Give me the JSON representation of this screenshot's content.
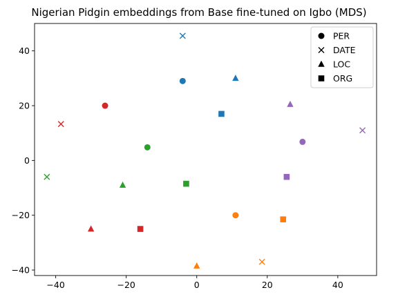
{
  "chart_data": {
    "type": "scatter",
    "title": "Nigerian Pidgin embeddings from Base fine-tuned on Igbo (MDS)",
    "xlabel": "",
    "ylabel": "",
    "xlim": [
      -46,
      51
    ],
    "ylim": [
      -42,
      50
    ],
    "xticks": [
      -40,
      -20,
      0,
      20,
      40
    ],
    "yticks": [
      -40,
      -20,
      0,
      20,
      40
    ],
    "grid": false,
    "legend_position": "top-right",
    "legend": [
      {
        "label": "PER",
        "marker": "circle"
      },
      {
        "label": "DATE",
        "marker": "x"
      },
      {
        "label": "LOC",
        "marker": "triangle"
      },
      {
        "label": "ORG",
        "marker": "square"
      }
    ],
    "colors": {
      "blue": "#1f77b4",
      "orange": "#ff7f0e",
      "green": "#2ca02c",
      "red": "#d62728",
      "purple": "#9467bd"
    },
    "points": [
      {
        "x": -4,
        "y": 45.5,
        "marker": "x",
        "color": "blue"
      },
      {
        "x": -4,
        "y": 29,
        "marker": "circle",
        "color": "blue"
      },
      {
        "x": 11,
        "y": 30,
        "marker": "triangle",
        "color": "blue"
      },
      {
        "x": 7,
        "y": 17,
        "marker": "square",
        "color": "blue"
      },
      {
        "x": -26,
        "y": 20,
        "marker": "circle",
        "color": "red"
      },
      {
        "x": -38.5,
        "y": 13.3,
        "marker": "x",
        "color": "red"
      },
      {
        "x": -30,
        "y": -25,
        "marker": "triangle",
        "color": "red"
      },
      {
        "x": -16,
        "y": -25,
        "marker": "square",
        "color": "red"
      },
      {
        "x": -14,
        "y": 4.8,
        "marker": "circle",
        "color": "green"
      },
      {
        "x": -42.5,
        "y": -6,
        "marker": "x",
        "color": "green"
      },
      {
        "x": -21,
        "y": -9,
        "marker": "triangle",
        "color": "green"
      },
      {
        "x": -3,
        "y": -8.5,
        "marker": "square",
        "color": "green"
      },
      {
        "x": 26.5,
        "y": 20.5,
        "marker": "triangle",
        "color": "purple"
      },
      {
        "x": 47,
        "y": 11,
        "marker": "x",
        "color": "purple"
      },
      {
        "x": 30,
        "y": 6.8,
        "marker": "circle",
        "color": "purple"
      },
      {
        "x": 25.5,
        "y": -6,
        "marker": "square",
        "color": "purple"
      },
      {
        "x": 11,
        "y": -20,
        "marker": "circle",
        "color": "orange"
      },
      {
        "x": 24.5,
        "y": -21.5,
        "marker": "square",
        "color": "orange"
      },
      {
        "x": 18.5,
        "y": -37,
        "marker": "x",
        "color": "orange"
      },
      {
        "x": 0,
        "y": -38.5,
        "marker": "triangle",
        "color": "orange"
      }
    ]
  }
}
